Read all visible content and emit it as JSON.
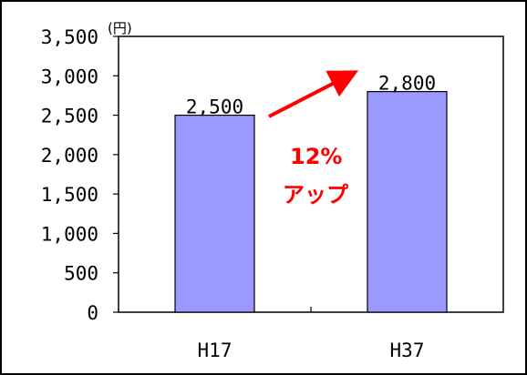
{
  "chart_data": {
    "type": "bar",
    "categories": [
      "H17",
      "H37"
    ],
    "values": [
      2500,
      2800
    ],
    "value_labels": [
      "2,500",
      "2,800"
    ],
    "y_unit": "(円)",
    "yticks": [
      0,
      500,
      1000,
      1500,
      2000,
      2500,
      3000,
      3500
    ],
    "ytick_labels": [
      "0",
      "500",
      "1,000",
      "1,500",
      "2,000",
      "2,500",
      "3,000",
      "3,500"
    ],
    "ylim": [
      0,
      3500
    ],
    "grid": false,
    "bar_color": "#9999ff",
    "annotation": {
      "lines": [
        "12%",
        "アップ"
      ],
      "color": "#ff0000"
    }
  }
}
